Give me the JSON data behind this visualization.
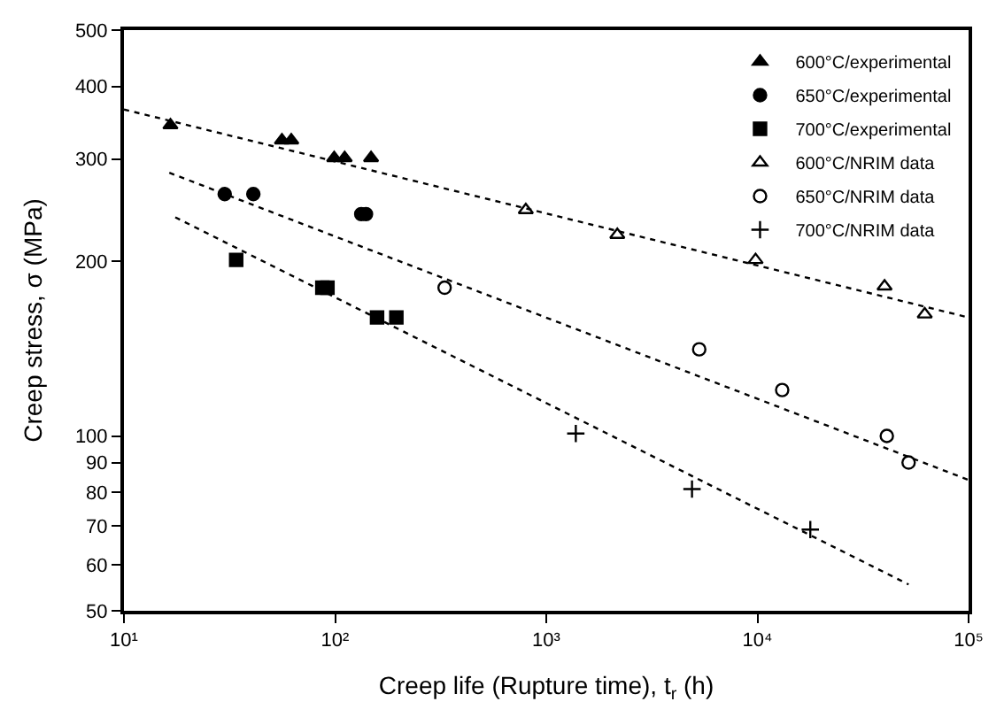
{
  "chart_data": {
    "type": "scatter",
    "xlabel": "Creep life (Rupture time), t$_{r}$ (h)",
    "ylabel": "Creep stress, σ (MPa)",
    "log": "xy",
    "xlim": [
      10,
      100000
    ],
    "ylim": [
      50,
      500
    ],
    "xticks": [
      {
        "value": 10,
        "label": "10¹"
      },
      {
        "value": 100,
        "label": "10²"
      },
      {
        "value": 1000,
        "label": "10³"
      },
      {
        "value": 10000,
        "label": "10⁴"
      },
      {
        "value": 100000,
        "label": "10⁵"
      }
    ],
    "yticks": [
      50,
      60,
      70,
      80,
      90,
      100,
      200,
      300,
      400,
      500
    ],
    "grid": false,
    "legend": "top right",
    "series": [
      {
        "name": "600°C/experimental",
        "color": "#000000",
        "marker": "triangle",
        "x": [
          16.6,
          56,
          62,
          99,
          111,
          148
        ],
        "values": [
          343,
          323,
          323,
          301,
          301,
          301
        ]
      },
      {
        "name": "650°C/experimental",
        "color": "#000000",
        "marker": "circle",
        "x": [
          30,
          41,
          133,
          140
        ],
        "values": [
          261,
          261,
          241,
          241
        ]
      },
      {
        "name": "700°C/experimental",
        "color": "#000000",
        "marker": "square",
        "x": [
          34,
          87,
          92,
          158,
          195
        ],
        "values": [
          201,
          180,
          180,
          160,
          160
        ]
      },
      {
        "name": "600°C/NRIM data",
        "color": "#000000",
        "marker": "triangle-open",
        "x": [
          800,
          2170,
          9800,
          40000,
          62000
        ],
        "values": [
          245,
          222,
          201,
          181,
          162
        ]
      },
      {
        "name": "650°C/NRIM data",
        "color": "#000000",
        "marker": "circle-open",
        "x": [
          330,
          5300,
          13100,
          41000,
          52000
        ],
        "values": [
          180,
          141,
          120,
          100,
          90
        ]
      },
      {
        "name": "700°C/NRIM data",
        "color": "#000000",
        "marker": "cross",
        "x": [
          1380,
          4900,
          17800
        ],
        "values": [
          101,
          81,
          69
        ]
      },
      {
        "type": "line",
        "color": "#000000",
        "line_style": "dotted",
        "marker": "none",
        "x": [
          10,
          100000
        ],
        "values": [
          365,
          160
        ]
      },
      {
        "type": "line",
        "color": "#000000",
        "line_style": "dotted",
        "marker": "none",
        "x": [
          16.4,
          100000
        ],
        "values": [
          284,
          84
        ]
      },
      {
        "type": "line",
        "color": "#000000",
        "line_style": "dotted",
        "marker": "none",
        "x": [
          17.5,
          52000
        ],
        "values": [
          238,
          55.5
        ]
      }
    ]
  }
}
